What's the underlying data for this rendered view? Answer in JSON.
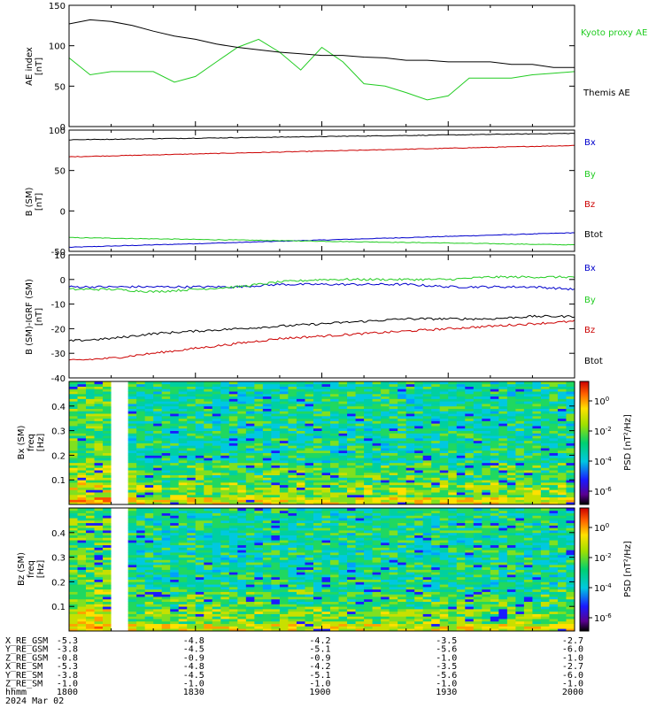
{
  "chart_data": [
    {
      "type": "line",
      "panel": "ae",
      "ylabel": "AE index",
      "yunit": "[nT]",
      "ylim": [
        0,
        150
      ],
      "yticks": [
        0,
        50,
        100,
        150
      ],
      "x": [
        0,
        5,
        10,
        15,
        20,
        25,
        30,
        35,
        40,
        45,
        50,
        55,
        60,
        65,
        70,
        75,
        80,
        85,
        90,
        95,
        100,
        105,
        110,
        115,
        120
      ],
      "series": [
        {
          "name": "Kyoto proxy AE",
          "color": "#22cc22",
          "values": [
            85,
            64,
            68,
            68,
            68,
            55,
            62,
            80,
            98,
            108,
            92,
            70,
            98,
            80,
            53,
            50,
            42,
            33,
            38,
            60,
            60,
            60,
            64,
            66,
            68
          ]
        },
        {
          "name": "Themis AE",
          "color": "#000000",
          "values": [
            127,
            132,
            130,
            125,
            118,
            112,
            108,
            102,
            98,
            95,
            92,
            90,
            88,
            88,
            86,
            85,
            82,
            82,
            80,
            80,
            80,
            77,
            77,
            73,
            73
          ]
        }
      ]
    },
    {
      "type": "line",
      "panel": "bsm",
      "ylabel": "B (SM)",
      "yunit": "[nT]",
      "ylim": [
        -50,
        100
      ],
      "yticks": [
        -50,
        0,
        50,
        100
      ],
      "x": [
        0,
        120
      ],
      "series": [
        {
          "name": "Bx",
          "color": "#0000cc",
          "values": [
            -45,
            -27
          ]
        },
        {
          "name": "By",
          "color": "#22cc22",
          "values": [
            -33,
            -42
          ]
        },
        {
          "name": "Bz",
          "color": "#cc0000",
          "values": [
            67,
            81
          ]
        },
        {
          "name": "Btot",
          "color": "#000000",
          "values": [
            88,
            96
          ]
        }
      ]
    },
    {
      "type": "line",
      "panel": "bigrf",
      "ylabel": "B (SM)-IGRF (SM)",
      "yunit": "[nT]",
      "ylim": [
        -40,
        10
      ],
      "yticks": [
        -40,
        -30,
        -20,
        -10,
        0,
        10
      ],
      "x": [
        0,
        10,
        20,
        30,
        40,
        50,
        60,
        70,
        80,
        90,
        100,
        110,
        120
      ],
      "series": [
        {
          "name": "Bx",
          "color": "#0000cc",
          "values": [
            -3,
            -3,
            -3,
            -3,
            -3,
            -2,
            -2,
            -2,
            -2,
            -3,
            -3,
            -3,
            -4
          ]
        },
        {
          "name": "By",
          "color": "#22cc22",
          "values": [
            -4,
            -4,
            -5,
            -4,
            -3,
            -1,
            0,
            0,
            0,
            0,
            1,
            1,
            1
          ]
        },
        {
          "name": "Bz",
          "color": "#cc0000",
          "values": [
            -33,
            -32,
            -30,
            -28,
            -26,
            -24,
            -23,
            -22,
            -21,
            -20,
            -19,
            -18,
            -17
          ]
        },
        {
          "name": "Btot",
          "color": "#000000",
          "values": [
            -25,
            -24,
            -22,
            -21,
            -20,
            -19,
            -18,
            -17,
            -16,
            -16,
            -16,
            -15,
            -15
          ]
        }
      ]
    },
    {
      "type": "heatmap",
      "panel": "bx-spec",
      "ylabel": "Bx (SM)",
      "ylabel2": "freq",
      "yunit": "[Hz]",
      "ylim": [
        0,
        0.5
      ],
      "yticks": [
        0.1,
        0.2,
        0.3,
        0.4
      ],
      "cbar_label": "PSD [nT²/Hz]",
      "cbar_ticks": [
        {
          "base": "10",
          "exp": "0"
        },
        {
          "base": "10",
          "exp": "-2"
        },
        {
          "base": "10",
          "exp": "-4"
        },
        {
          "base": "10",
          "exp": "-6"
        }
      ],
      "data_gap_minutes": [
        10,
        14
      ]
    },
    {
      "type": "heatmap",
      "panel": "bz-spec",
      "ylabel": "Bz (SM)",
      "ylabel2": "freq",
      "yunit": "[Hz]",
      "ylim": [
        0,
        0.5
      ],
      "yticks": [
        0.1,
        0.2,
        0.3,
        0.4
      ],
      "cbar_label": "PSD [nT²/Hz]",
      "cbar_ticks": [
        {
          "base": "10",
          "exp": "0"
        },
        {
          "base": "10",
          "exp": "-2"
        },
        {
          "base": "10",
          "exp": "-4"
        },
        {
          "base": "10",
          "exp": "-6"
        }
      ],
      "data_gap_minutes": [
        10,
        14
      ]
    }
  ],
  "time_axis": {
    "start_minutes": 0,
    "end_minutes": 120,
    "major_every": 30
  },
  "ephemeris": {
    "rows": [
      {
        "label": "X_RE_GSM",
        "values": [
          "-5.3",
          "-4.8",
          "-4.2",
          "-3.5",
          "-2.7"
        ]
      },
      {
        "label": "Y_RE_GSM",
        "values": [
          "-3.8",
          "-4.5",
          "-5.1",
          "-5.6",
          "-6.0"
        ]
      },
      {
        "label": "Z_RE_GSM",
        "values": [
          "-0.8",
          "-0.9",
          "-0.9",
          "-1.0",
          "-1.0"
        ]
      },
      {
        "label": "X_RE_SM",
        "values": [
          "-5.3",
          "-4.8",
          "-4.2",
          "-3.5",
          "-2.7"
        ]
      },
      {
        "label": "Y_RE_SM",
        "values": [
          "-3.8",
          "-4.5",
          "-5.1",
          "-5.6",
          "-6.0"
        ]
      },
      {
        "label": "Z_RE_SM",
        "values": [
          "-1.0",
          "-1.0",
          "-1.0",
          "-1.0",
          "-1.0"
        ]
      },
      {
        "label": "hhmm",
        "values": [
          "1800",
          "1830",
          "1900",
          "1930",
          "2000"
        ]
      }
    ],
    "date": "2024 Mar 02"
  }
}
